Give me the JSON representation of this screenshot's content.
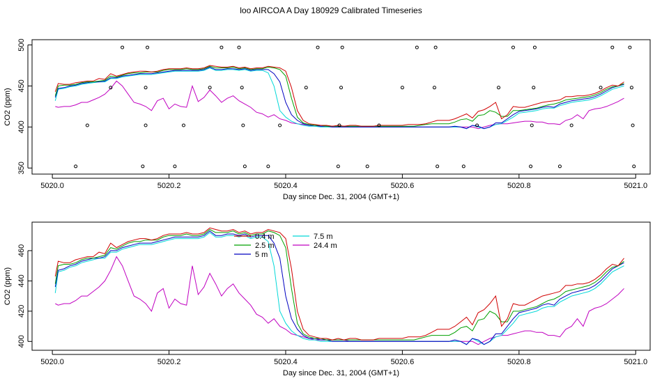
{
  "title": "loo AIRCOA A  Day 180929  Calibrated Timeseries",
  "chart_data": [
    {
      "type": "line",
      "xlabel": "Day since Dec. 31, 2004 (GMT+1)",
      "ylabel": "CO2 (ppm)",
      "xlim": [
        5019.97,
        5021.02
      ],
      "ylim": [
        346,
        503
      ],
      "xticks": [
        "5020.0",
        "5020.2",
        "5020.4",
        "5020.6",
        "5020.8",
        "5021.0"
      ],
      "yticks": [
        "350",
        "400",
        "450",
        "500"
      ],
      "colors": {
        "0.4 m": "#d00000",
        "2.5 m": "#00a000",
        "5 m": "#0000c0",
        "7.5 m": "#00d8d8",
        "24.4 m": "#c000c0"
      },
      "scatter": {
        "name": "",
        "points": [
          [
            5020.04,
            352
          ],
          [
            5020.06,
            402
          ],
          [
            5020.1,
            448
          ],
          [
            5020.12,
            497
          ],
          [
            5020.155,
            352
          ],
          [
            5020.16,
            402
          ],
          [
            5020.16,
            448
          ],
          [
            5020.163,
            497
          ],
          [
            5020.21,
            352
          ],
          [
            5020.225,
            402
          ],
          [
            5020.27,
            448
          ],
          [
            5020.29,
            497
          ],
          [
            5020.32,
            497
          ],
          [
            5020.325,
            448
          ],
          [
            5020.327,
            402
          ],
          [
            5020.33,
            352
          ],
          [
            5020.37,
            352
          ],
          [
            5020.39,
            402
          ],
          [
            5020.435,
            448
          ],
          [
            5020.455,
            497
          ],
          [
            5020.49,
            352
          ],
          [
            5020.492,
            402
          ],
          [
            5020.495,
            448
          ],
          [
            5020.497,
            497
          ],
          [
            5020.54,
            352
          ],
          [
            5020.56,
            402
          ],
          [
            5020.6,
            448
          ],
          [
            5020.625,
            497
          ],
          [
            5020.655,
            448
          ],
          [
            5020.657,
            497
          ],
          [
            5020.66,
            352
          ],
          [
            5020.705,
            352
          ],
          [
            5020.728,
            402
          ],
          [
            5020.765,
            448
          ],
          [
            5020.79,
            497
          ],
          [
            5020.82,
            352
          ],
          [
            5020.822,
            402
          ],
          [
            5020.825,
            448
          ],
          [
            5020.827,
            497
          ],
          [
            5020.87,
            352
          ],
          [
            5020.89,
            402
          ],
          [
            5020.94,
            448
          ],
          [
            5020.96,
            497
          ],
          [
            5020.99,
            497
          ],
          [
            5020.993,
            448
          ],
          [
            5020.995,
            402
          ],
          [
            5020.997,
            352
          ]
        ]
      }
    },
    {
      "type": "line",
      "xlabel": "Day since Dec. 31, 2004 (GMT+1)",
      "ylabel": "CO2 (ppm)",
      "xlim": [
        5019.97,
        5021.02
      ],
      "ylim": [
        396,
        477
      ],
      "xticks": [
        "5020.0",
        "5020.2",
        "5020.4",
        "5020.6",
        "5020.8",
        "5021.0"
      ],
      "yticks": [
        "400",
        "420",
        "440",
        "460"
      ],
      "legend": {
        "placement": "top-center",
        "entries": [
          {
            "label": "0.4 m",
            "color": "#d00000"
          },
          {
            "label": "2.5 m",
            "color": "#00a000"
          },
          {
            "label": "5 m",
            "color": "#0000c0"
          },
          {
            "label": "7.5 m",
            "color": "#00d8d8"
          },
          {
            "label": "24.4 m",
            "color": "#c000c0"
          }
        ]
      }
    }
  ],
  "series_points": {
    "x": [
      5020.005,
      5020.01,
      5020.02,
      5020.03,
      5020.04,
      5020.05,
      5020.06,
      5020.07,
      5020.08,
      5020.09,
      5020.1,
      5020.11,
      5020.12,
      5020.13,
      5020.14,
      5020.15,
      5020.16,
      5020.17,
      5020.18,
      5020.19,
      5020.2,
      5020.21,
      5020.22,
      5020.23,
      5020.24,
      5020.25,
      5020.26,
      5020.27,
      5020.28,
      5020.29,
      5020.3,
      5020.31,
      5020.32,
      5020.33,
      5020.34,
      5020.35,
      5020.36,
      5020.37,
      5020.38,
      5020.39,
      5020.4,
      5020.41,
      5020.42,
      5020.43,
      5020.44,
      5020.45,
      5020.46,
      5020.47,
      5020.48,
      5020.49,
      5020.5,
      5020.51,
      5020.52,
      5020.53,
      5020.54,
      5020.55,
      5020.56,
      5020.57,
      5020.58,
      5020.59,
      5020.6,
      5020.61,
      5020.62,
      5020.63,
      5020.64,
      5020.65,
      5020.66,
      5020.67,
      5020.68,
      5020.69,
      5020.7,
      5020.71,
      5020.72,
      5020.73,
      5020.74,
      5020.75,
      5020.76,
      5020.77,
      5020.78,
      5020.79,
      5020.8,
      5020.81,
      5020.82,
      5020.83,
      5020.84,
      5020.85,
      5020.86,
      5020.87,
      5020.88,
      5020.89,
      5020.9,
      5020.91,
      5020.92,
      5020.93,
      5020.94,
      5020.95,
      5020.96,
      5020.97,
      5020.98
    ],
    "0.4 m": [
      443,
      453,
      452,
      452,
      454,
      455,
      456,
      456,
      459,
      458,
      465,
      462,
      464,
      466,
      467,
      468,
      468,
      467,
      468,
      470,
      471,
      471,
      471,
      472,
      471,
      471,
      472,
      475,
      474,
      473,
      473,
      474,
      472,
      473,
      471,
      472,
      472,
      474,
      473,
      472,
      468,
      448,
      420,
      408,
      404,
      403,
      402,
      402,
      401,
      402,
      401,
      402,
      402,
      401,
      401,
      401,
      402,
      402,
      402,
      402,
      402,
      403,
      403,
      403,
      404,
      406,
      408,
      408,
      408,
      410,
      413,
      416,
      411,
      419,
      421,
      425,
      430,
      410,
      415,
      425,
      424,
      424,
      426,
      428,
      430,
      431,
      432,
      433,
      437,
      437,
      438,
      438,
      439,
      441,
      444,
      448,
      451,
      450,
      455
    ],
    "2.5 m": [
      438,
      450,
      451,
      451,
      452,
      454,
      455,
      455,
      456,
      457,
      462,
      461,
      463,
      465,
      466,
      466,
      467,
      467,
      467,
      469,
      470,
      470,
      470,
      471,
      470,
      470,
      471,
      474,
      472,
      472,
      472,
      473,
      471,
      472,
      470,
      471,
      471,
      473,
      472,
      470,
      462,
      435,
      412,
      405,
      403,
      402,
      402,
      401,
      401,
      401,
      401,
      401,
      401,
      401,
      401,
      401,
      401,
      401,
      401,
      401,
      401,
      401,
      401,
      402,
      403,
      404,
      404,
      404,
      404,
      406,
      409,
      410,
      407,
      414,
      415,
      420,
      418,
      413,
      413,
      420,
      420,
      421,
      422,
      423,
      425,
      427,
      428,
      430,
      433,
      434,
      435,
      436,
      437,
      439,
      442,
      446,
      449,
      450,
      453
    ],
    "5 m": [
      436,
      447,
      448,
      450,
      451,
      453,
      454,
      455,
      455,
      456,
      460,
      460,
      462,
      463,
      464,
      465,
      465,
      465,
      466,
      467,
      468,
      469,
      469,
      469,
      469,
      469,
      470,
      473,
      470,
      470,
      471,
      471,
      470,
      471,
      469,
      470,
      470,
      470,
      465,
      455,
      430,
      415,
      408,
      404,
      402,
      402,
      401,
      401,
      400,
      400,
      400,
      400,
      400,
      400,
      400,
      400,
      400,
      400,
      400,
      400,
      400,
      400,
      400,
      400,
      400,
      400,
      400,
      400,
      400,
      401,
      400,
      398,
      402,
      401,
      398,
      400,
      405,
      405,
      410,
      415,
      419,
      420,
      421,
      422,
      424,
      425,
      424,
      428,
      430,
      432,
      433,
      434,
      435,
      437,
      440,
      444,
      448,
      450,
      452
    ],
    "7.5 m": [
      432,
      446,
      447,
      449,
      450,
      452,
      453,
      454,
      455,
      455,
      459,
      459,
      461,
      462,
      463,
      464,
      464,
      464,
      465,
      466,
      467,
      468,
      468,
      468,
      468,
      468,
      469,
      472,
      469,
      469,
      470,
      470,
      469,
      470,
      468,
      469,
      469,
      466,
      450,
      420,
      412,
      407,
      404,
      402,
      401,
      401,
      400,
      400,
      400,
      400,
      400,
      400,
      400,
      400,
      400,
      400,
      400,
      400,
      400,
      400,
      400,
      400,
      400,
      400,
      400,
      400,
      400,
      400,
      400,
      400,
      400,
      398,
      402,
      400,
      398,
      400,
      403,
      404,
      408,
      412,
      417,
      418,
      419,
      420,
      422,
      423,
      423,
      426,
      428,
      430,
      431,
      432,
      433,
      435,
      438,
      442,
      446,
      448,
      450
    ],
    "24.4 m": [
      425,
      424,
      425,
      425,
      427,
      430,
      430,
      433,
      436,
      440,
      447,
      456,
      450,
      440,
      430,
      428,
      425,
      420,
      432,
      435,
      422,
      428,
      425,
      424,
      450,
      431,
      436,
      445,
      438,
      430,
      435,
      438,
      432,
      428,
      424,
      418,
      416,
      412,
      415,
      410,
      408,
      405,
      404,
      403,
      402,
      401,
      401,
      401,
      401,
      401,
      401,
      400,
      400,
      400,
      400,
      400,
      400,
      400,
      400,
      400,
      400,
      400,
      400,
      400,
      400,
      400,
      400,
      400,
      400,
      400,
      400,
      400,
      400,
      398,
      400,
      402,
      403,
      404,
      404,
      405,
      406,
      407,
      407,
      406,
      406,
      404,
      404,
      403,
      408,
      410,
      415,
      410,
      420,
      422,
      423,
      425,
      428,
      431,
      435
    ]
  }
}
